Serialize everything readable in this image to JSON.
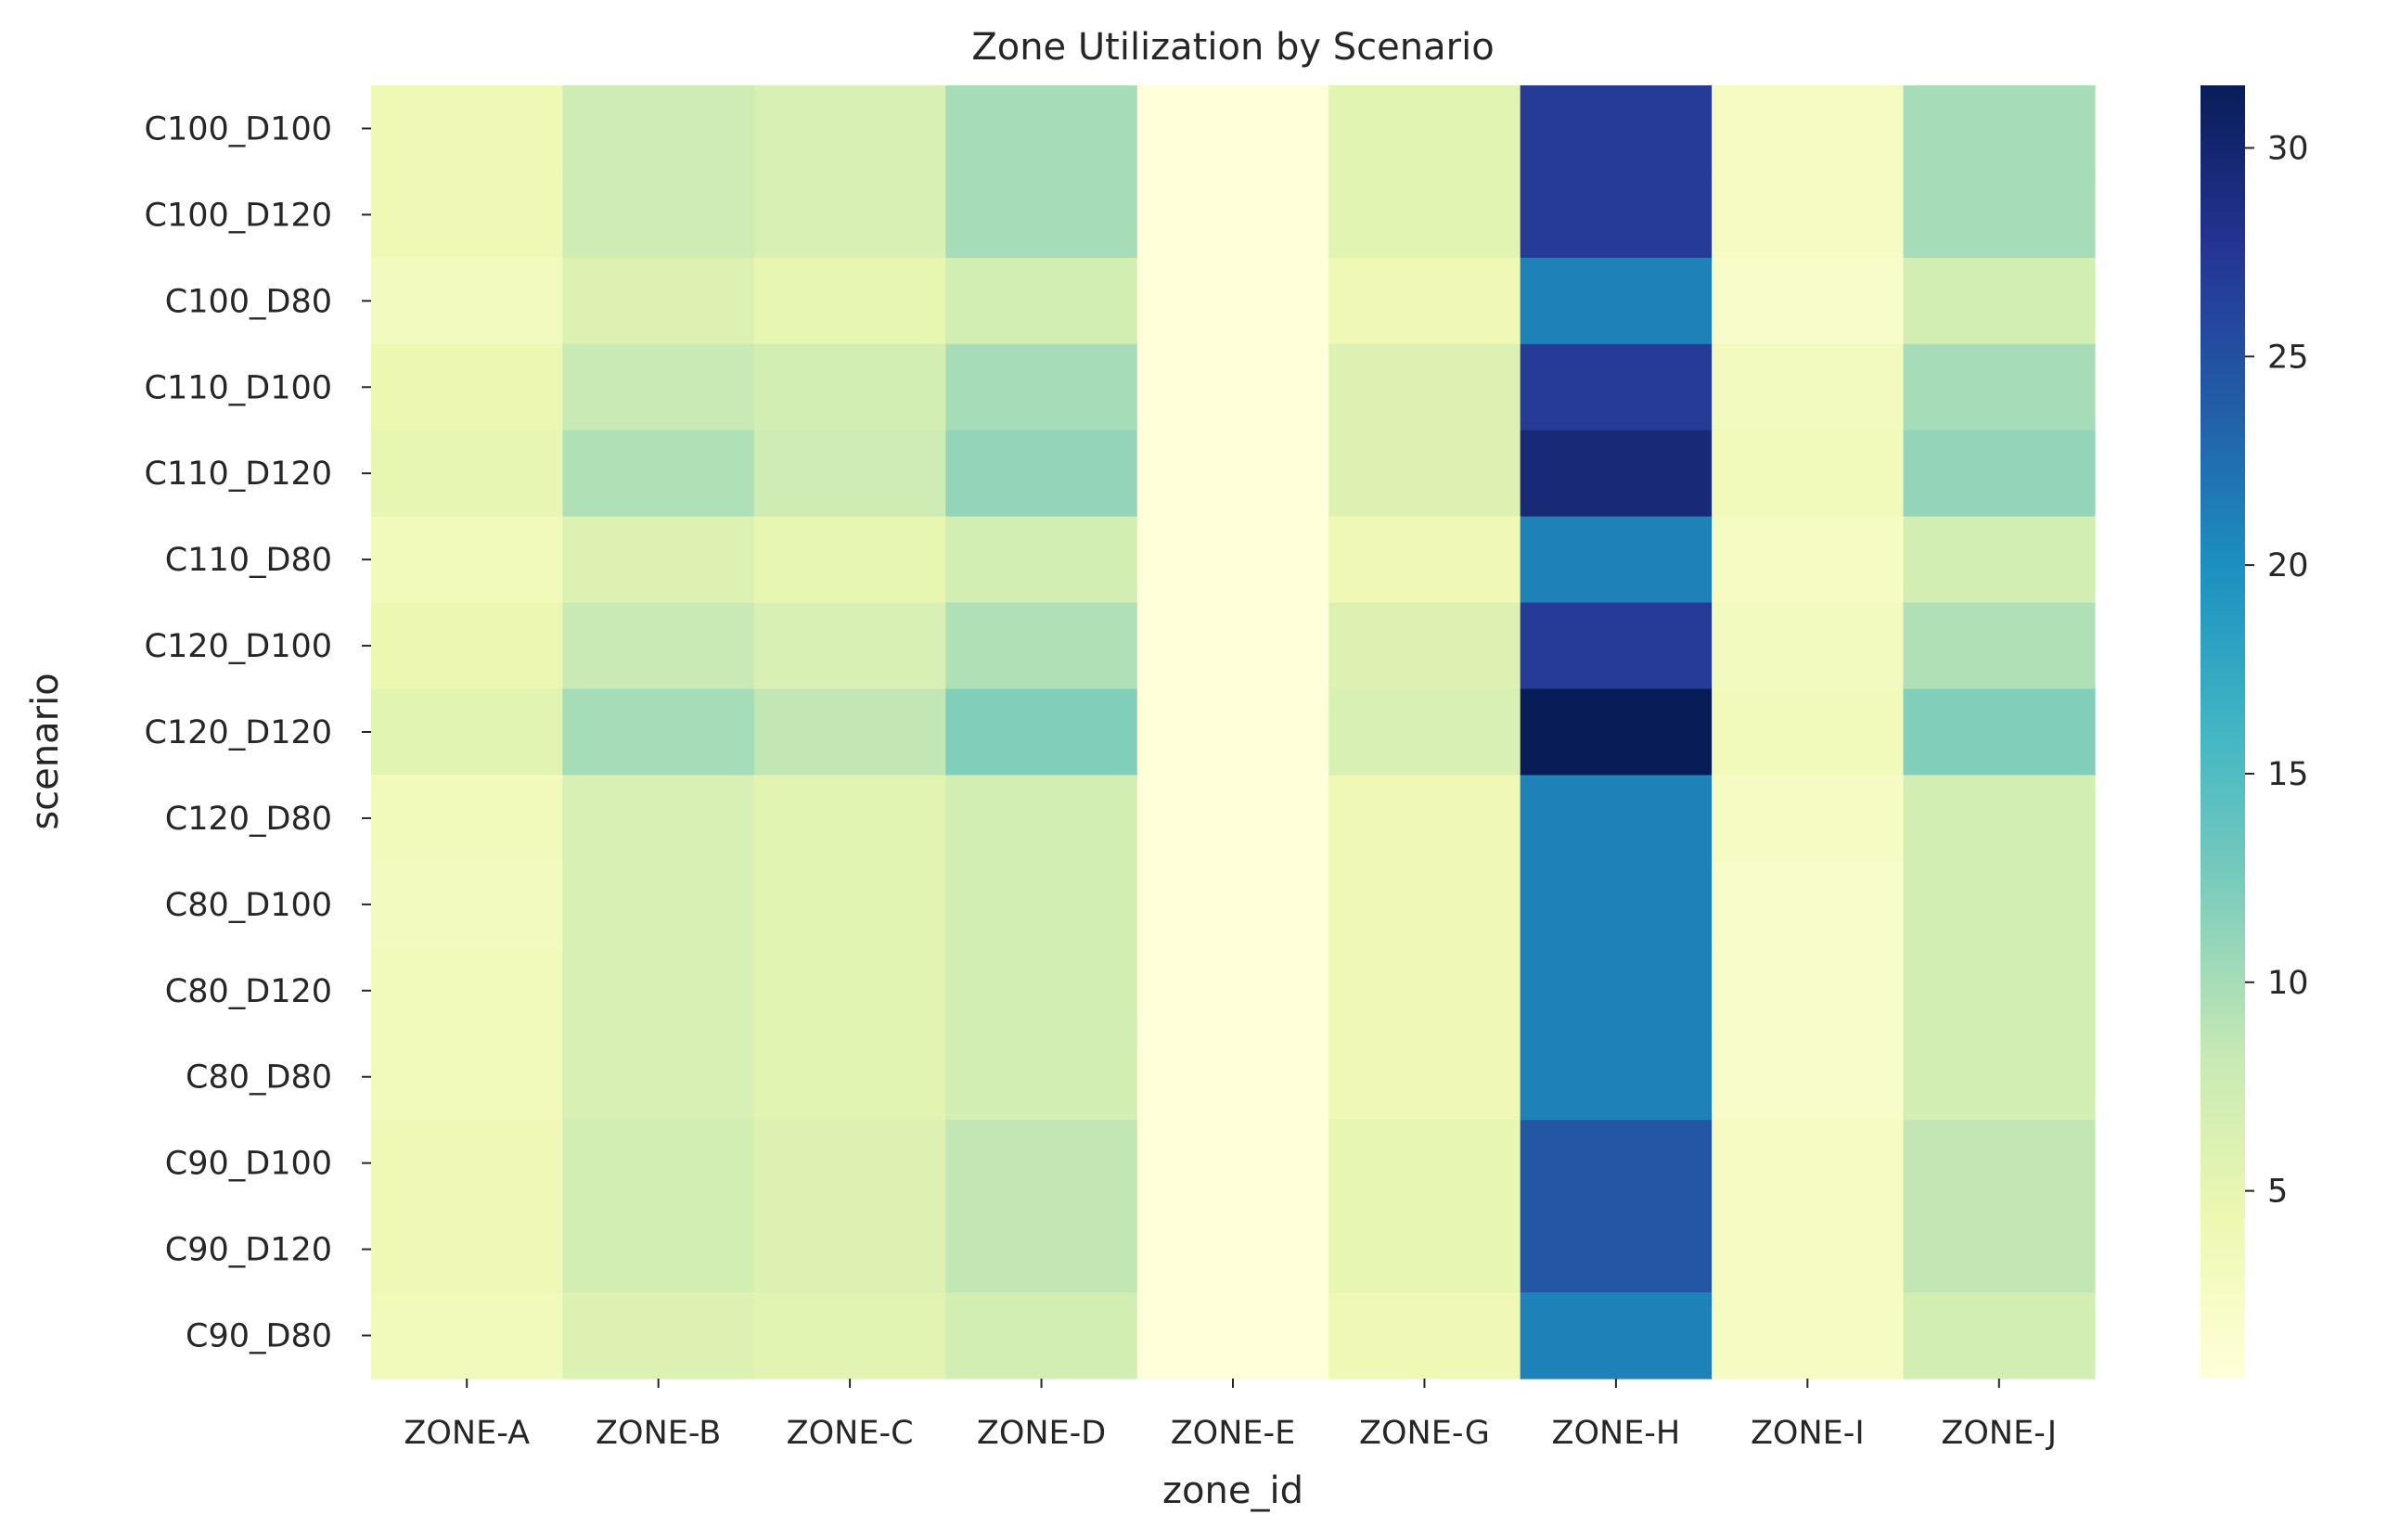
{
  "chart_data": {
    "type": "heatmap",
    "title": "Zone Utilization by Scenario",
    "xlabel": "zone_id",
    "ylabel": "scenario",
    "x_categories": [
      "ZONE-A",
      "ZONE-B",
      "ZONE-C",
      "ZONE-D",
      "ZONE-E",
      "ZONE-G",
      "ZONE-H",
      "ZONE-I",
      "ZONE-J"
    ],
    "y_categories": [
      "C100_D100",
      "C100_D120",
      "C100_D80",
      "C110_D100",
      "C110_D120",
      "C110_D80",
      "C120_D100",
      "C120_D120",
      "C120_D80",
      "C80_D100",
      "C80_D120",
      "C80_D80",
      "C90_D100",
      "C90_D120",
      "C90_D80"
    ],
    "values": [
      [
        4.0,
        7.5,
        6.5,
        10.0,
        0.5,
        5.5,
        27.0,
        2.5,
        10.0
      ],
      [
        4.0,
        7.5,
        6.5,
        10.0,
        0.5,
        5.5,
        27.0,
        2.5,
        10.0
      ],
      [
        3.0,
        6.0,
        5.0,
        7.0,
        0.5,
        4.0,
        21.0,
        2.0,
        7.0
      ],
      [
        4.5,
        8.0,
        7.0,
        10.0,
        0.5,
        6.0,
        27.0,
        3.0,
        10.0
      ],
      [
        5.0,
        9.5,
        7.5,
        11.0,
        0.5,
        6.0,
        29.5,
        3.5,
        11.0
      ],
      [
        3.5,
        6.0,
        5.0,
        7.0,
        0.5,
        4.0,
        21.0,
        2.5,
        7.0
      ],
      [
        4.5,
        8.0,
        6.5,
        9.5,
        0.5,
        6.0,
        27.0,
        3.0,
        9.5
      ],
      [
        5.5,
        10.0,
        8.5,
        12.0,
        0.5,
        6.5,
        31.5,
        3.5,
        12.0
      ],
      [
        3.5,
        6.5,
        5.5,
        7.0,
        0.5,
        4.0,
        21.0,
        2.5,
        7.0
      ],
      [
        3.0,
        6.5,
        5.5,
        7.0,
        0.5,
        4.0,
        21.0,
        2.0,
        7.0
      ],
      [
        3.5,
        6.5,
        5.5,
        7.0,
        0.5,
        4.0,
        21.0,
        2.0,
        7.0
      ],
      [
        3.5,
        6.5,
        5.5,
        7.0,
        0.5,
        4.0,
        21.0,
        2.0,
        7.0
      ],
      [
        4.0,
        7.0,
        6.0,
        8.5,
        0.5,
        5.0,
        24.5,
        2.5,
        8.5
      ],
      [
        4.0,
        7.0,
        6.0,
        8.5,
        0.5,
        5.0,
        24.5,
        2.5,
        8.5
      ],
      [
        3.5,
        6.0,
        5.5,
        7.0,
        0.5,
        4.0,
        21.0,
        2.5,
        7.0
      ]
    ],
    "colorbar": {
      "cmap": "YlGnBu",
      "min": 0.5,
      "max": 31.5,
      "ticks": [
        5,
        10,
        15,
        20,
        25,
        30
      ],
      "tick_labels": [
        "5",
        "10",
        "15",
        "20",
        "25",
        "30"
      ]
    },
    "colors": [
      "#ffffd9",
      "#edf8b1",
      "#c7e9b4",
      "#7fcdbb",
      "#41b6c4",
      "#1d91c0",
      "#225ea8",
      "#253494",
      "#081d58"
    ]
  }
}
